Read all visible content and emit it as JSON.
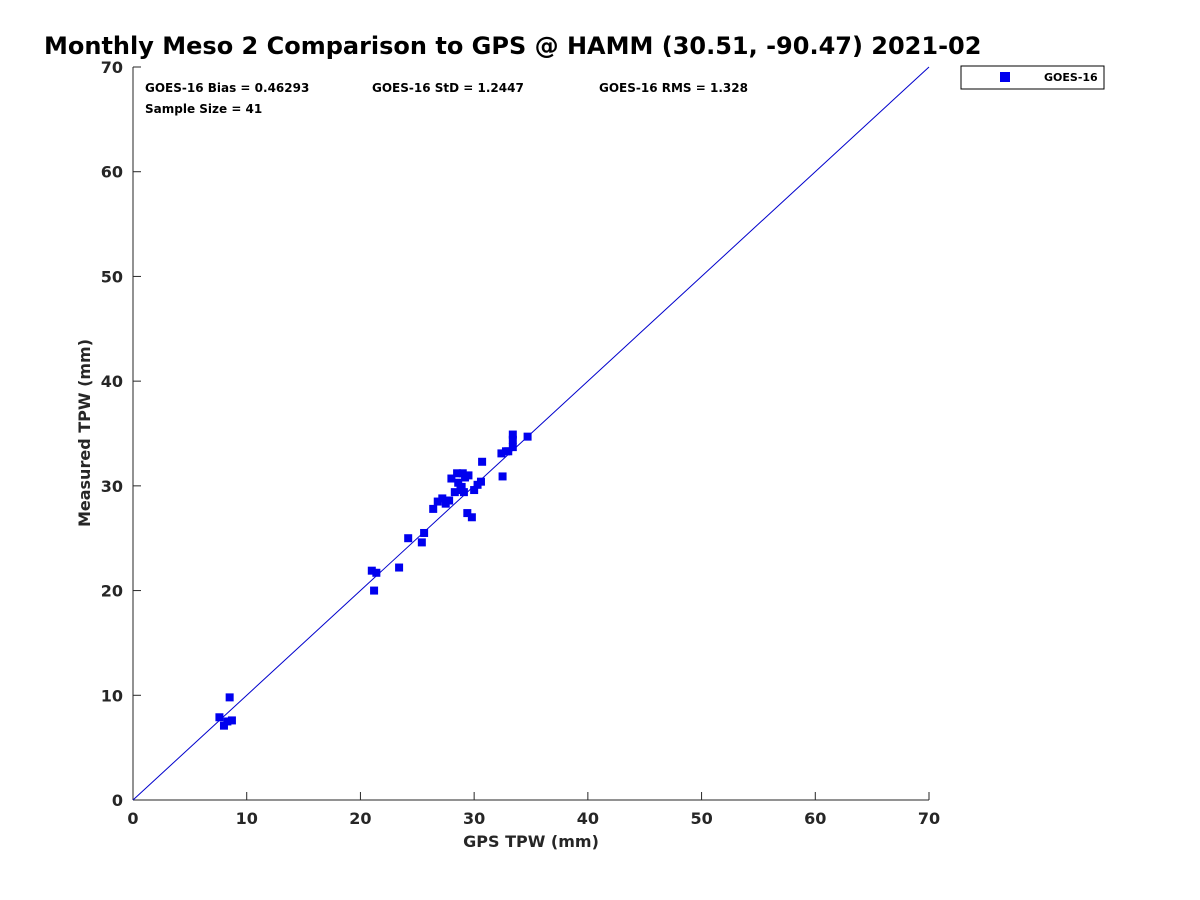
{
  "chart_data": {
    "type": "scatter",
    "title": "Monthly Meso 2 Comparison to GPS @ HAMM (30.51, -90.47) 2021-02",
    "xlabel": "GPS TPW (mm)",
    "ylabel": "Measured TPW (mm)",
    "xlim": [
      0,
      70
    ],
    "ylim": [
      0,
      70
    ],
    "xticks": [
      "0",
      "10",
      "20",
      "30",
      "40",
      "50",
      "60",
      "70"
    ],
    "yticks": [
      "0",
      "10",
      "20",
      "30",
      "40",
      "50",
      "60",
      "70"
    ],
    "grid": false,
    "legend_position": "top-right-outside",
    "annotations": {
      "bias": "GOES-16 Bias = 0.46293",
      "std": "GOES-16 StD = 1.2447",
      "rms": "GOES-16 RMS = 1.328",
      "sample": "Sample Size = 41"
    },
    "reference_line": {
      "from": [
        0,
        0
      ],
      "to": [
        70,
        70
      ],
      "color": "#0000cc"
    },
    "series": [
      {
        "name": "GOES-16",
        "color": "#0000ee",
        "marker": "square",
        "points": [
          [
            7.6,
            7.9
          ],
          [
            8.0,
            7.1
          ],
          [
            8.3,
            7.5
          ],
          [
            8.5,
            9.8
          ],
          [
            8.7,
            7.6
          ],
          [
            21.0,
            21.9
          ],
          [
            21.2,
            20.0
          ],
          [
            21.4,
            21.7
          ],
          [
            23.4,
            22.2
          ],
          [
            24.2,
            25.0
          ],
          [
            25.4,
            24.6
          ],
          [
            25.6,
            25.5
          ],
          [
            26.4,
            27.8
          ],
          [
            26.8,
            28.5
          ],
          [
            27.2,
            28.8
          ],
          [
            27.5,
            28.3
          ],
          [
            27.8,
            28.6
          ],
          [
            28.0,
            30.7
          ],
          [
            28.3,
            29.4
          ],
          [
            28.5,
            31.2
          ],
          [
            28.6,
            30.3
          ],
          [
            28.8,
            29.6
          ],
          [
            28.9,
            29.9
          ],
          [
            29.0,
            31.2
          ],
          [
            29.1,
            29.4
          ],
          [
            29.2,
            30.8
          ],
          [
            29.4,
            27.4
          ],
          [
            29.5,
            31.0
          ],
          [
            29.8,
            27.0
          ],
          [
            30.0,
            29.6
          ],
          [
            30.3,
            30.1
          ],
          [
            30.6,
            30.4
          ],
          [
            30.7,
            32.3
          ],
          [
            32.4,
            33.1
          ],
          [
            32.5,
            30.9
          ],
          [
            32.8,
            33.3
          ],
          [
            33.0,
            33.3
          ],
          [
            33.4,
            33.7
          ],
          [
            33.4,
            34.4
          ],
          [
            33.4,
            34.9
          ],
          [
            34.7,
            34.7
          ]
        ]
      }
    ]
  }
}
